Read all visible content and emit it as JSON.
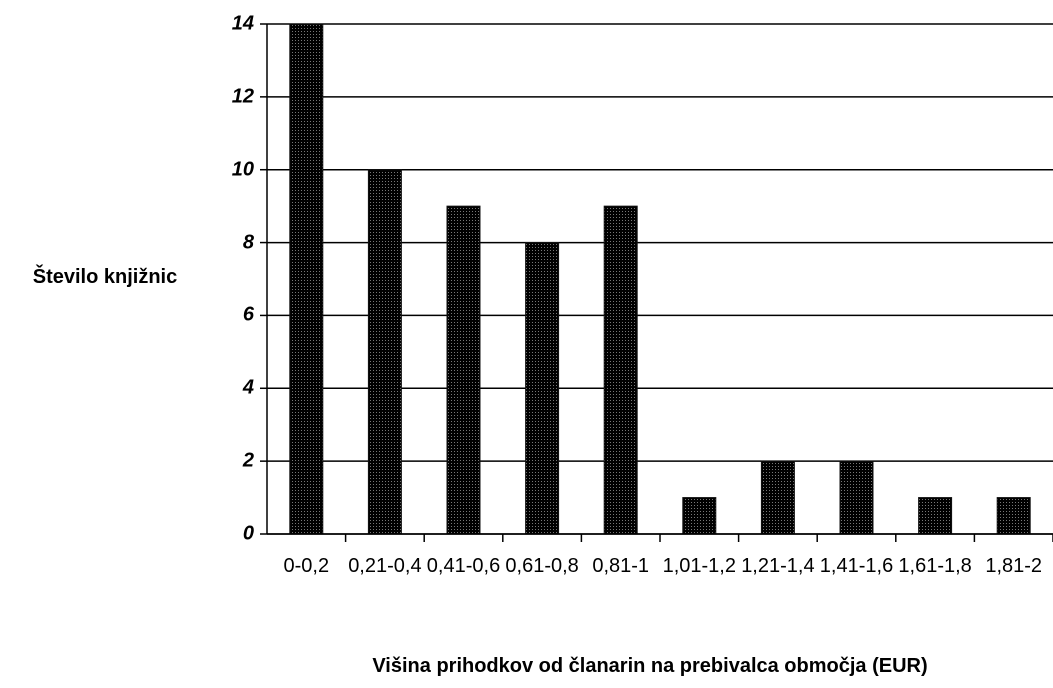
{
  "chart_data": {
    "type": "bar",
    "x_label": "Višina prihodkov od članarin na prebivalca območja (EUR)",
    "y_label": "Število knjižnic",
    "categories": [
      "0-0,2",
      "0,21-0,4",
      "0,41-0,6",
      "0,61-0,8",
      "0,81-1",
      "1,01-1,2",
      "1,21-1,4",
      "1,41-1,6",
      "1,61-1,8",
      "1,81-2"
    ],
    "values": [
      14,
      10,
      9,
      8,
      9,
      1,
      2,
      2,
      1,
      1
    ],
    "color": "#111111",
    "ylim": [
      0,
      14
    ],
    "yticks": [
      0,
      2,
      4,
      6,
      8,
      10,
      12,
      14
    ],
    "grid": true
  }
}
